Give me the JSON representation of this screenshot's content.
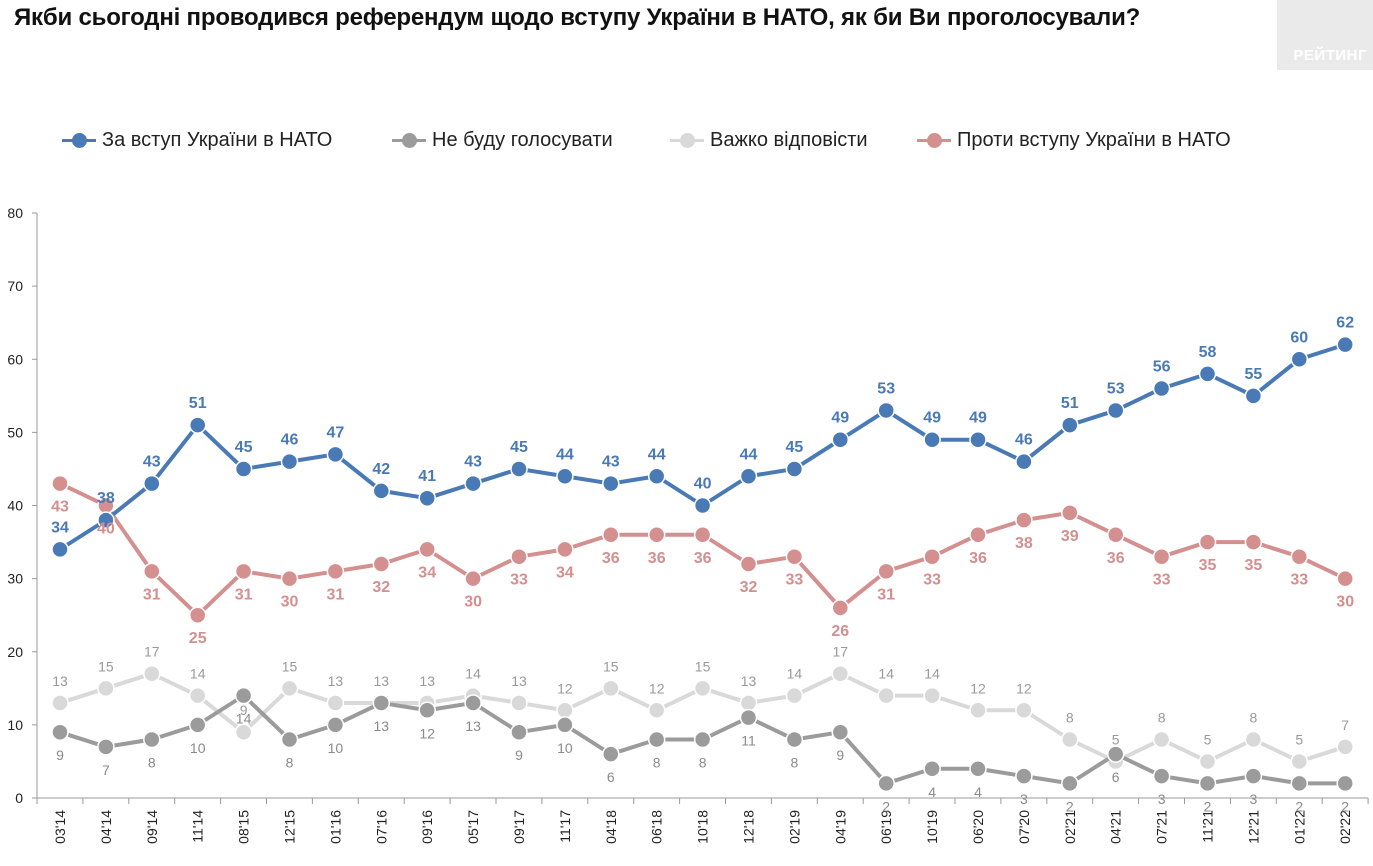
{
  "title": "Якби сьогодні проводився референдум щодо вступу України в НАТО, як би Ви проголосували?",
  "brand": {
    "logo_text": "РЕЙТИНГ"
  },
  "chart_data": {
    "type": "line",
    "title": "Якби сьогодні проводився референдум щодо вступу України в НАТО, як би Ви проголосували?",
    "xlabel": "",
    "ylabel": "",
    "ylim": [
      0,
      80
    ],
    "yticks": [
      0,
      10,
      20,
      30,
      40,
      50,
      60,
      70,
      80
    ],
    "grid": false,
    "legend_position": "top",
    "categories": [
      "03'14",
      "04'14",
      "09'14",
      "11'14",
      "08'15",
      "12'15",
      "01'16",
      "07'16",
      "09'16",
      "05'17",
      "09'17",
      "11'17",
      "04'18",
      "06'18",
      "10'18",
      "12'18",
      "02'19",
      "04'19",
      "06'19",
      "10'19",
      "06'20",
      "07'20",
      "02'21",
      "04'21",
      "07'21",
      "11'21",
      "12'21",
      "01'22",
      "02'22"
    ],
    "series": [
      {
        "name": "За вступ України в НАТО",
        "color": "#4a7ab5",
        "label_color": "#4a7ab5",
        "label_pos": "above",
        "values": [
          34,
          38,
          43,
          51,
          45,
          46,
          47,
          42,
          41,
          43,
          45,
          44,
          43,
          44,
          40,
          44,
          45,
          49,
          53,
          49,
          49,
          46,
          51,
          53,
          56,
          58,
          55,
          60,
          62
        ]
      },
      {
        "name": "Не буду голосувати",
        "color": "#9b9b9b",
        "label_color": "#8a8a8a",
        "label_pos": "below",
        "values": [
          9,
          7,
          8,
          10,
          14,
          8,
          10,
          13,
          12,
          13,
          9,
          10,
          6,
          8,
          8,
          11,
          8,
          9,
          2,
          4,
          4,
          3,
          2,
          6,
          3,
          2,
          3,
          2,
          2
        ]
      },
      {
        "name": "Важко відповісти",
        "color": "#d9d9d9",
        "label_color": "#9a9a9a",
        "label_pos": "above",
        "values": [
          13,
          15,
          17,
          14,
          9,
          15,
          13,
          13,
          13,
          14,
          13,
          12,
          15,
          12,
          15,
          13,
          14,
          17,
          14,
          14,
          12,
          12,
          8,
          5,
          8,
          5,
          8,
          5,
          7
        ]
      },
      {
        "name": "Проти вступу України в НАТО",
        "color": "#d48f8f",
        "label_color": "#d48f8f",
        "label_pos": "below",
        "values": [
          43,
          40,
          31,
          25,
          31,
          30,
          31,
          32,
          34,
          30,
          33,
          34,
          36,
          36,
          36,
          32,
          33,
          26,
          31,
          33,
          36,
          38,
          39,
          36,
          33,
          35,
          35,
          33,
          30
        ]
      }
    ]
  }
}
